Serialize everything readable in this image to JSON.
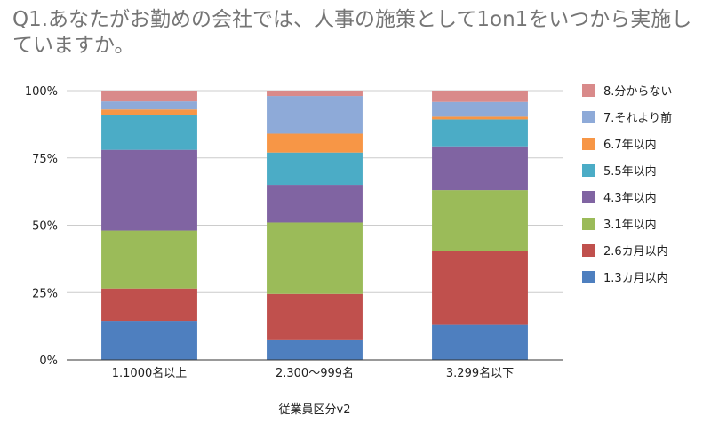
{
  "chart_data": {
    "type": "bar",
    "stacked": true,
    "title": "Q1.あなたがお勤めの会社では、人事の施策として1on1をいつから実施していますか。",
    "xlabel": "従業員区分v2",
    "ylabel": "",
    "ylim": [
      0,
      100
    ],
    "yticks": [
      "0%",
      "25%",
      "50%",
      "75%",
      "100%"
    ],
    "categories": [
      "1.1000名以上",
      "2.300〜999名",
      "3.299名以下"
    ],
    "grid": true,
    "legend_position": "right",
    "series": [
      {
        "name": "1.3カ月以内",
        "color": "#4e7fbf",
        "values": [
          14.5,
          7.3,
          13.0
        ]
      },
      {
        "name": "2.6カ月以内",
        "color": "#c0504d",
        "values": [
          12.0,
          17.2,
          27.5
        ]
      },
      {
        "name": "3.1年以内",
        "color": "#9bbb59",
        "values": [
          21.5,
          26.5,
          22.5
        ]
      },
      {
        "name": "4.3年以内",
        "color": "#8064a2",
        "values": [
          30.0,
          14.0,
          16.3
        ]
      },
      {
        "name": "5.5年以内",
        "color": "#4bacc6",
        "values": [
          13.0,
          12.0,
          10.0
        ]
      },
      {
        "name": "6.7年以内",
        "color": "#f79646",
        "values": [
          2.0,
          7.0,
          1.0
        ]
      },
      {
        "name": "7.それより前",
        "color": "#8eaad8",
        "values": [
          3.0,
          14.0,
          5.5
        ]
      },
      {
        "name": "8.分からない",
        "color": "#d98a8a",
        "values": [
          4.0,
          2.0,
          4.2
        ]
      }
    ]
  }
}
